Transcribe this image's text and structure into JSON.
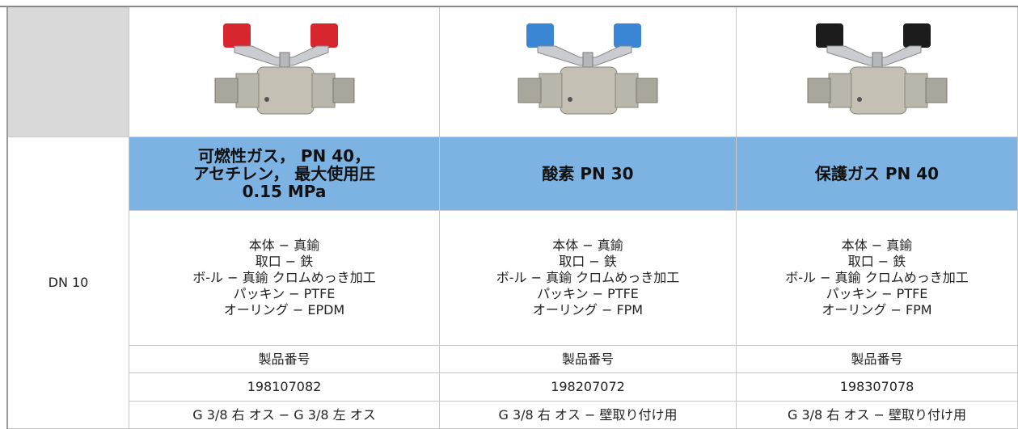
{
  "table": {
    "size_label": "DN 10",
    "columns": [
      {
        "title": [
          "可燃性ガス， PN 40，",
          "アセチレン， 最大使用圧",
          "0.15 MPa"
        ],
        "materials": [
          "本体 − 真鍮",
          "取口 − 鉄",
          "ボ-ル − 真鍮 クロムめっき加工",
          "パッキン − PTFE",
          "オーリング − EPDM"
        ],
        "part_label": "製品番号",
        "part_number": "198107082",
        "connection": "G 3/8 右 オス − G 3/8 左 オス"
      },
      {
        "title": [
          "酸素 PN 30"
        ],
        "materials": [
          "本体 − 真鍮",
          "取口 − 鉄",
          "ボ-ル − 真鍮 クロムめっき加工",
          "パッキン − PTFE",
          "オーリング − FPM"
        ],
        "part_label": "製品番号",
        "part_number": "198207072",
        "connection": "G 3/8 右 オス − 壁取り付け用"
      },
      {
        "title": [
          "保護ガス PN 40"
        ],
        "materials": [
          "本体 − 真鍮",
          "取口 − 鉄",
          "ボ-ル − 真鍮 クロムめっき加工",
          "パッキン − PTFE",
          "オーリング − FPM"
        ],
        "part_label": "製品番号",
        "part_number": "198307078",
        "connection": "G 3/8 右 オス − 壁取り付け用"
      }
    ]
  }
}
